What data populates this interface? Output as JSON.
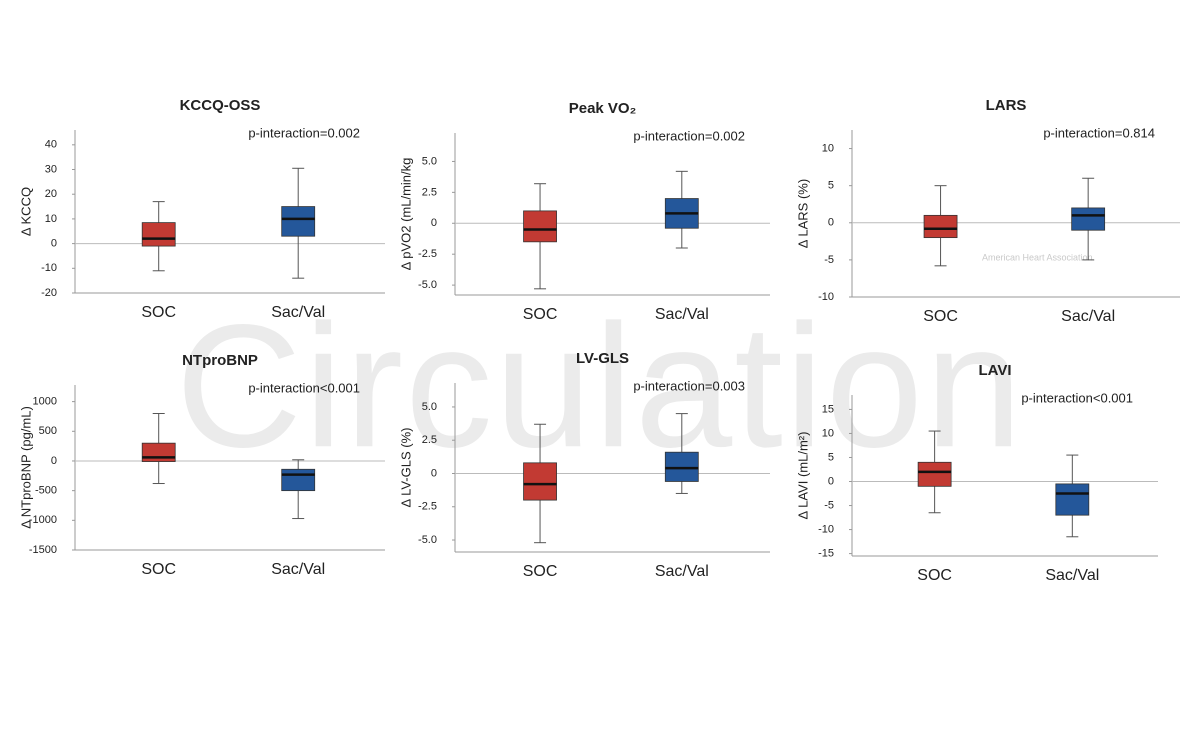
{
  "watermark": "Circulation",
  "logo_text": "American Heart Association.",
  "chart_data": [
    {
      "type": "box",
      "title": "KCCQ-OSS",
      "ylabel": "Δ KCCQ",
      "annotation": "p-interaction=0.002",
      "categories": [
        "SOC",
        "Sac/Val"
      ],
      "colors": [
        "#c23a33",
        "#24579a"
      ],
      "boxes": [
        {
          "whislo": -11,
          "q1": -1,
          "med": 2,
          "q3": 8.5,
          "whishi": 17
        },
        {
          "whislo": -14,
          "q1": 3,
          "med": 10,
          "q3": 15,
          "whishi": 30.5
        }
      ],
      "ylim": [
        -20,
        46
      ],
      "yticks": [
        -20,
        -10,
        0,
        10,
        20,
        30,
        40
      ]
    },
    {
      "type": "box",
      "title": "Peak VO₂",
      "ylabel": "Δ pVO2 (mL/min/kg",
      "annotation": "p-interaction=0.002",
      "categories": [
        "SOC",
        "Sac/Val"
      ],
      "colors": [
        "#c23a33",
        "#24579a"
      ],
      "boxes": [
        {
          "whislo": -5.3,
          "q1": -1.5,
          "med": -0.5,
          "q3": 1.0,
          "whishi": 3.2
        },
        {
          "whislo": -2,
          "q1": -0.4,
          "med": 0.8,
          "q3": 2.0,
          "whishi": 4.2
        }
      ],
      "ylim": [
        -5.8,
        7.3
      ],
      "yticks": [
        {
          "value": -5,
          "label": "-5.0"
        },
        {
          "value": -2.5,
          "label": "-2.5"
        },
        0,
        {
          "value": 2.5,
          "label": "2.5"
        },
        {
          "value": 5,
          "label": "5.0"
        }
      ]
    },
    {
      "type": "box",
      "title": "LARS",
      "ylabel": "Δ LARS (%)",
      "annotation": "p-interaction=0.814",
      "categories": [
        "SOC",
        "Sac/Val"
      ],
      "colors": [
        "#c23a33",
        "#24579a"
      ],
      "boxes": [
        {
          "whislo": -5.8,
          "q1": -2,
          "med": -0.8,
          "q3": 1,
          "whishi": 5
        },
        {
          "whislo": -5,
          "q1": -1,
          "med": 1,
          "q3": 2,
          "whishi": 6
        }
      ],
      "ylim": [
        -10,
        12.5
      ],
      "yticks": [
        -10,
        -5,
        0,
        5,
        10
      ]
    },
    {
      "type": "box",
      "title": "NTproBNP",
      "ylabel": "Δ NTproBNP (pg/mL)",
      "annotation": "p-interaction<0.001",
      "categories": [
        "SOC",
        "Sac/Val"
      ],
      "colors": [
        "#c23a33",
        "#24579a"
      ],
      "boxes": [
        {
          "whislo": -380,
          "q1": -10,
          "med": 60,
          "q3": 300,
          "whishi": 800
        },
        {
          "whislo": -970,
          "q1": -500,
          "med": -230,
          "q3": -140,
          "whishi": 20
        }
      ],
      "ylim": [
        -1500,
        1280
      ],
      "yticks": [
        -1500,
        -1000,
        -500,
        0,
        500,
        1000
      ]
    },
    {
      "type": "box",
      "title": "LV-GLS",
      "ylabel": "Δ LV-GLS (%)",
      "annotation": "p-interaction=0.003",
      "categories": [
        "SOC",
        "Sac/Val"
      ],
      "colors": [
        "#c23a33",
        "#24579a"
      ],
      "boxes": [
        {
          "whislo": -5.2,
          "q1": -2,
          "med": -0.8,
          "q3": 0.8,
          "whishi": 3.7
        },
        {
          "whislo": -1.5,
          "q1": -0.6,
          "med": 0.4,
          "q3": 1.6,
          "whishi": 4.5
        }
      ],
      "ylim": [
        -5.9,
        6.8
      ],
      "yticks": [
        {
          "value": -5,
          "label": "-5.0"
        },
        {
          "value": -2.5,
          "label": "-2.5"
        },
        0,
        {
          "value": 2.5,
          "label": "2.5"
        },
        {
          "value": 5,
          "label": "5.0"
        }
      ]
    },
    {
      "type": "box",
      "title": "LAVI",
      "ylabel": "Δ LAVI (mL/m²)",
      "annotation": "p-interaction<0.001",
      "categories": [
        "SOC",
        "Sac/Val"
      ],
      "colors": [
        "#c23a33",
        "#24579a"
      ],
      "boxes": [
        {
          "whislo": -6.5,
          "q1": -1,
          "med": 2,
          "q3": 4,
          "whishi": 10.5
        },
        {
          "whislo": -11.5,
          "q1": -7,
          "med": -2.5,
          "q3": -0.5,
          "whishi": 5.5
        }
      ],
      "ylim": [
        -15.5,
        18
      ],
      "yticks": [
        -15,
        -10,
        -5,
        0,
        5,
        10,
        15
      ]
    }
  ]
}
